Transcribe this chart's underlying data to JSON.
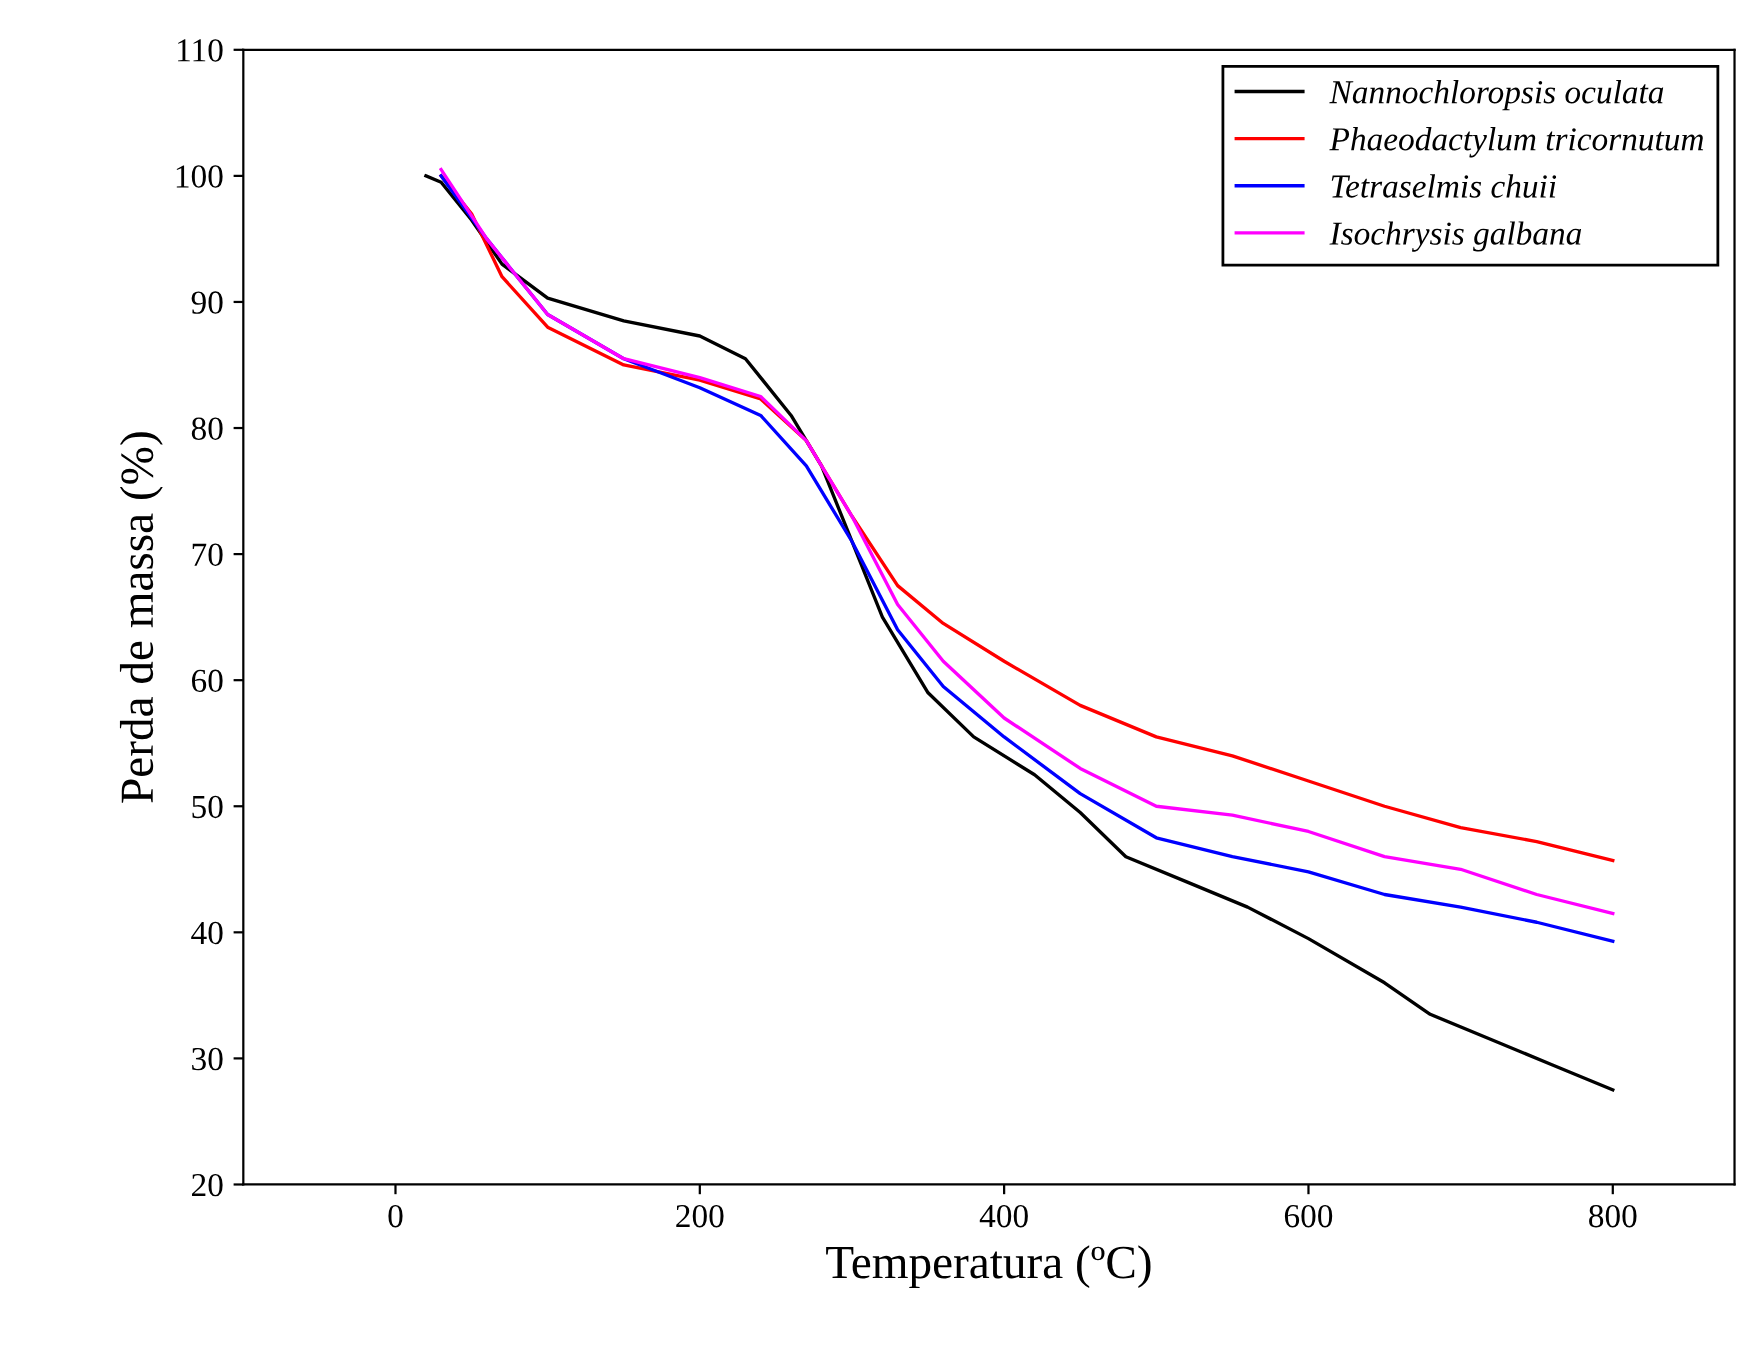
{
  "chart_data": {
    "type": "line",
    "xlabel": "Temperatura (ºC)",
    "ylabel": "Perda de massa (%)",
    "xlim": [
      -100,
      880
    ],
    "xticks": [
      0,
      200,
      400,
      600,
      800
    ],
    "ylim": [
      20,
      110
    ],
    "yticks": [
      20,
      30,
      40,
      50,
      60,
      70,
      80,
      90,
      100,
      110
    ],
    "grid": false,
    "legend": "top right",
    "marker": "none",
    "line_style": "solid",
    "series": [
      {
        "name": "Nannochloropsis oculata",
        "color": "#000000",
        "x": [
          20,
          30,
          50,
          70,
          100,
          150,
          200,
          230,
          260,
          280,
          300,
          320,
          350,
          380,
          420,
          450,
          480,
          520,
          560,
          600,
          650,
          680,
          720,
          760,
          800
        ],
        "values": [
          100,
          99.5,
          96.5,
          93,
          90.3,
          88.5,
          87.3,
          85.5,
          81,
          77,
          71,
          65,
          59,
          55.5,
          52.5,
          49.5,
          46,
          44,
          42,
          39.5,
          36,
          33.5,
          31.5,
          29.5,
          27.5
        ]
      },
      {
        "name": "Phaeodactylum tricornutum",
        "color": "#ff0000",
        "x": [
          30,
          50,
          70,
          100,
          150,
          200,
          240,
          270,
          300,
          330,
          360,
          400,
          450,
          500,
          550,
          600,
          650,
          700,
          750,
          800
        ],
        "values": [
          100,
          97,
          92,
          88,
          85,
          83.8,
          82.3,
          79,
          73,
          67.5,
          64.5,
          61.5,
          58,
          55.5,
          54,
          52,
          50,
          48.3,
          47.2,
          45.7
        ]
      },
      {
        "name": "Tetraselmis chuii",
        "color": "#0000ff",
        "x": [
          30,
          60,
          100,
          150,
          200,
          240,
          270,
          300,
          330,
          360,
          400,
          450,
          500,
          550,
          600,
          650,
          700,
          750,
          800
        ],
        "values": [
          100,
          95,
          89,
          85.5,
          83.2,
          81,
          77,
          71,
          64,
          59.5,
          55.5,
          51,
          47.5,
          46,
          44.8,
          43,
          42,
          40.8,
          39.3
        ]
      },
      {
        "name": "Isochrysis galbana",
        "color": "#ff00ff",
        "x": [
          30,
          60,
          100,
          150,
          200,
          240,
          270,
          300,
          330,
          360,
          400,
          450,
          500,
          550,
          600,
          650,
          700,
          750,
          800
        ],
        "values": [
          100.5,
          95,
          89,
          85.5,
          84,
          82.5,
          79,
          73,
          66,
          61.5,
          57,
          53,
          50,
          49.3,
          48,
          46,
          45,
          43,
          41.5
        ]
      }
    ]
  }
}
